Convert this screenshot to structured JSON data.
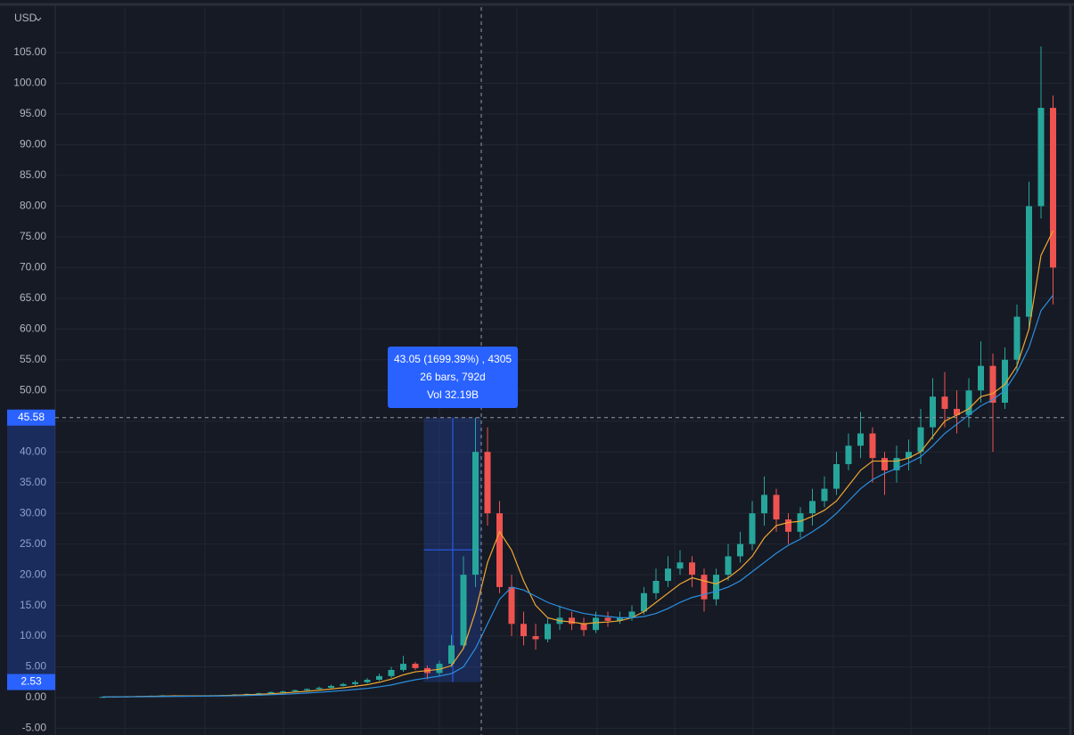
{
  "chart_data": {
    "type": "candlestick",
    "currency": "USD",
    "ylim": [
      -6.09,
      112.4
    ],
    "yticks": [
      {
        "value": -5,
        "label": "-5.00"
      },
      {
        "value": 0,
        "label": "0.00"
      },
      {
        "value": 5,
        "label": "5.00"
      },
      {
        "value": 10,
        "label": "10.00"
      },
      {
        "value": 15,
        "label": "15.00"
      },
      {
        "value": 20,
        "label": "20.00"
      },
      {
        "value": 25,
        "label": "25.00"
      },
      {
        "value": 30,
        "label": "30.00"
      },
      {
        "value": 35,
        "label": "35.00"
      },
      {
        "value": 40,
        "label": "40.00"
      },
      {
        "value": 45,
        "label": "45.00"
      },
      {
        "value": 50,
        "label": "50.00"
      },
      {
        "value": 55,
        "label": "55.00"
      },
      {
        "value": 60,
        "label": "60.00"
      },
      {
        "value": 65,
        "label": "65.00"
      },
      {
        "value": 70,
        "label": "70.00"
      },
      {
        "value": 75,
        "label": "75.00"
      },
      {
        "value": 80,
        "label": "80.00"
      },
      {
        "value": 85,
        "label": "85.00"
      },
      {
        "value": 90,
        "label": "90.00"
      },
      {
        "value": 95,
        "label": "95.00"
      },
      {
        "value": 100,
        "label": "100.00"
      },
      {
        "value": 105,
        "label": "105.00"
      }
    ],
    "grid": true,
    "up_color": "#26a69a",
    "down_color": "#ef5350",
    "open": [
      0.1,
      0.1,
      0.15,
      0.2,
      0.25,
      0.3,
      0.35,
      0.3,
      0.25,
      0.3,
      0.35,
      0.4,
      0.5,
      0.6,
      0.7,
      0.9,
      1.0,
      1.2,
      1.4,
      1.6,
      1.9,
      2.2,
      2.5,
      2.9,
      3.5,
      4.5,
      5.5,
      4.8,
      4.0,
      5.5,
      8.5,
      20,
      40,
      30,
      18,
      12,
      10,
      9.5,
      12,
      13,
      12,
      11,
      13,
      12.5,
      13,
      14,
      17,
      19,
      21,
      22,
      20,
      16,
      20,
      23,
      25,
      30,
      33,
      29,
      27,
      30,
      32,
      34,
      38,
      41,
      43,
      39,
      37,
      39,
      40,
      44,
      49,
      47,
      46,
      50,
      54,
      48,
      55,
      62,
      80,
      96
    ],
    "high": [
      0.15,
      0.2,
      0.25,
      0.3,
      0.35,
      0.4,
      0.4,
      0.35,
      0.35,
      0.4,
      0.45,
      0.55,
      0.65,
      0.8,
      1.0,
      1.1,
      1.3,
      1.5,
      1.8,
      2.1,
      2.4,
      2.8,
      3.2,
      3.9,
      5.0,
      6.8,
      5.8,
      5.2,
      6.0,
      10.2,
      23,
      45.58,
      44,
      32,
      20,
      14,
      12,
      13,
      15,
      14,
      13,
      14,
      14,
      14,
      15,
      18,
      21,
      23,
      24,
      23,
      21,
      21,
      25,
      27,
      32,
      36,
      34,
      30,
      31,
      34,
      36,
      40,
      43,
      46.5,
      44,
      40,
      41,
      42,
      47,
      52,
      53,
      50,
      52,
      58,
      56,
      57,
      64,
      84,
      106,
      98
    ],
    "low": [
      0.08,
      0.1,
      0.12,
      0.18,
      0.22,
      0.28,
      0.28,
      0.22,
      0.22,
      0.28,
      0.33,
      0.38,
      0.48,
      0.55,
      0.65,
      0.85,
      0.95,
      1.1,
      1.3,
      1.5,
      1.8,
      2.0,
      2.3,
      2.7,
      3.2,
      4.2,
      4.5,
      3.0,
      3.5,
      5.0,
      8.0,
      18,
      28,
      17,
      10,
      8.5,
      7.8,
      9.0,
      11,
      11,
      10,
      10.5,
      11.5,
      12,
      12.5,
      13.5,
      16,
      18,
      20,
      18,
      14,
      15,
      19,
      22,
      24,
      28,
      27,
      25,
      26,
      28,
      31,
      33,
      37,
      39,
      35,
      33,
      35,
      37,
      38,
      42,
      44,
      43,
      44,
      48,
      40,
      47,
      53,
      60,
      78,
      64
    ],
    "close": [
      0.1,
      0.15,
      0.2,
      0.25,
      0.3,
      0.35,
      0.3,
      0.25,
      0.3,
      0.35,
      0.4,
      0.5,
      0.6,
      0.7,
      0.9,
      1.0,
      1.2,
      1.4,
      1.6,
      1.9,
      2.2,
      2.5,
      2.9,
      3.5,
      4.5,
      5.5,
      4.8,
      4.0,
      5.5,
      8.5,
      20,
      40,
      30,
      18,
      12,
      10,
      9.5,
      12,
      13,
      12,
      11,
      13,
      12.5,
      13,
      14,
      17,
      19,
      21,
      22,
      20,
      16,
      20,
      23,
      25,
      30,
      33,
      29,
      27,
      30,
      32,
      34,
      38,
      41,
      43,
      39,
      37,
      39,
      40,
      44,
      49,
      47,
      46,
      50,
      54,
      48,
      55,
      62,
      80,
      96,
      70
    ],
    "series": [
      {
        "color": "#f0a732",
        "values": [
          0.1,
          0.12,
          0.14,
          0.17,
          0.2,
          0.24,
          0.27,
          0.28,
          0.28,
          0.3,
          0.33,
          0.38,
          0.45,
          0.53,
          0.63,
          0.75,
          0.88,
          1.03,
          1.2,
          1.4,
          1.6,
          1.85,
          2.1,
          2.5,
          3.0,
          3.7,
          4.2,
          4.4,
          4.6,
          5.2,
          8,
          14,
          22,
          27,
          24,
          19,
          15,
          13,
          12.5,
          12.3,
          12,
          12.2,
          12.3,
          12.5,
          13,
          14,
          15.5,
          17,
          18.5,
          19.5,
          19,
          18.5,
          19.5,
          21,
          23,
          26,
          28,
          28.5,
          28.7,
          29.5,
          30.5,
          32,
          34.5,
          37,
          38.5,
          38.5,
          38.5,
          39,
          40,
          42.5,
          45,
          46,
          47,
          49,
          49.5,
          51,
          54,
          60,
          72,
          76
        ]
      },
      {
        "color": "#2b8fe0",
        "values": [
          0.1,
          0.11,
          0.12,
          0.14,
          0.16,
          0.18,
          0.2,
          0.22,
          0.23,
          0.25,
          0.27,
          0.3,
          0.34,
          0.4,
          0.46,
          0.54,
          0.63,
          0.74,
          0.86,
          1.0,
          1.15,
          1.32,
          1.5,
          1.75,
          2.05,
          2.5,
          2.9,
          3.2,
          3.5,
          3.9,
          5,
          8,
          12,
          16,
          18,
          17.5,
          16.5,
          15.5,
          14.8,
          14.2,
          13.7,
          13.4,
          13.2,
          13,
          13,
          13.2,
          13.7,
          14.5,
          15.5,
          16.3,
          16.8,
          17.3,
          18,
          19,
          20.5,
          22,
          23.5,
          24.8,
          25.8,
          27,
          28.3,
          30,
          32,
          34,
          35.5,
          36.5,
          37.3,
          38.2,
          39.2,
          41,
          43,
          44.5,
          46,
          47.5,
          48.5,
          50,
          53,
          57,
          63,
          65.5
        ]
      }
    ],
    "crosshair": 45.58,
    "measure": {
      "from": 2.53,
      "to": 45.58,
      "change_label": "43.05 (1699.39%) , 4305",
      "bars_label": "26 bars, 792d",
      "volume_label": "Vol 32.19B"
    }
  }
}
